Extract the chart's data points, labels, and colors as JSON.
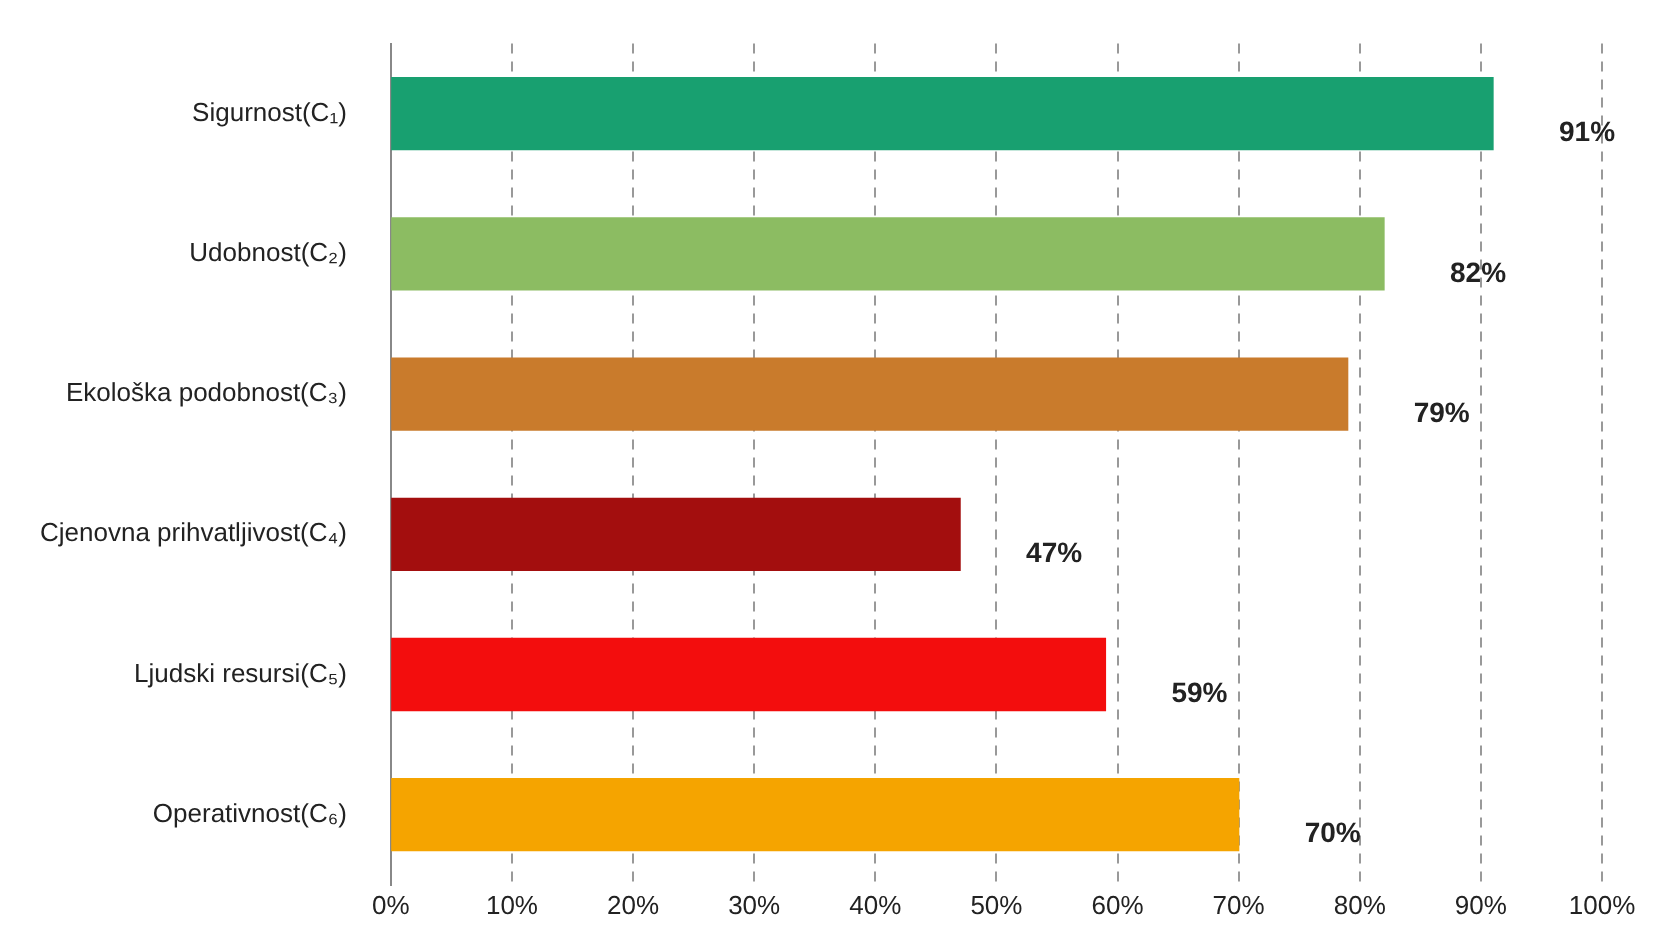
{
  "chart_data": {
    "type": "bar",
    "orientation": "horizontal",
    "categories": [
      "Sigurnost(C₁)",
      "Udobnost(C₂)",
      "Ekološka podobnost(C₃)",
      "Cjenovna prihvatljivost(C₄)",
      "Ljudski resursi(C₅)",
      "Operativnost(C₆)"
    ],
    "values": [
      91,
      82,
      79,
      47,
      59,
      70
    ],
    "colors": [
      "#18a070",
      "#8cbc62",
      "#c97b2c",
      "#a30e0e",
      "#f30d0d",
      "#f5a400"
    ],
    "value_labels": [
      "91%",
      "82%",
      "79%",
      "47%",
      "59%",
      "70%"
    ],
    "xlim": [
      0,
      100
    ],
    "xticks": [
      {
        "value": 0,
        "label": "0%"
      },
      {
        "value": 10,
        "label": "10%"
      },
      {
        "value": 20,
        "label": "20%"
      },
      {
        "value": 30,
        "label": "30%"
      },
      {
        "value": 40,
        "label": "40%"
      },
      {
        "value": 50,
        "label": "50%"
      },
      {
        "value": 60,
        "label": "60%"
      },
      {
        "value": 70,
        "label": "70%"
      },
      {
        "value": 80,
        "label": "80%"
      },
      {
        "value": 90,
        "label": "90%"
      },
      {
        "value": 100,
        "label": "100%"
      }
    ],
    "grid": "x",
    "legend": false
  }
}
